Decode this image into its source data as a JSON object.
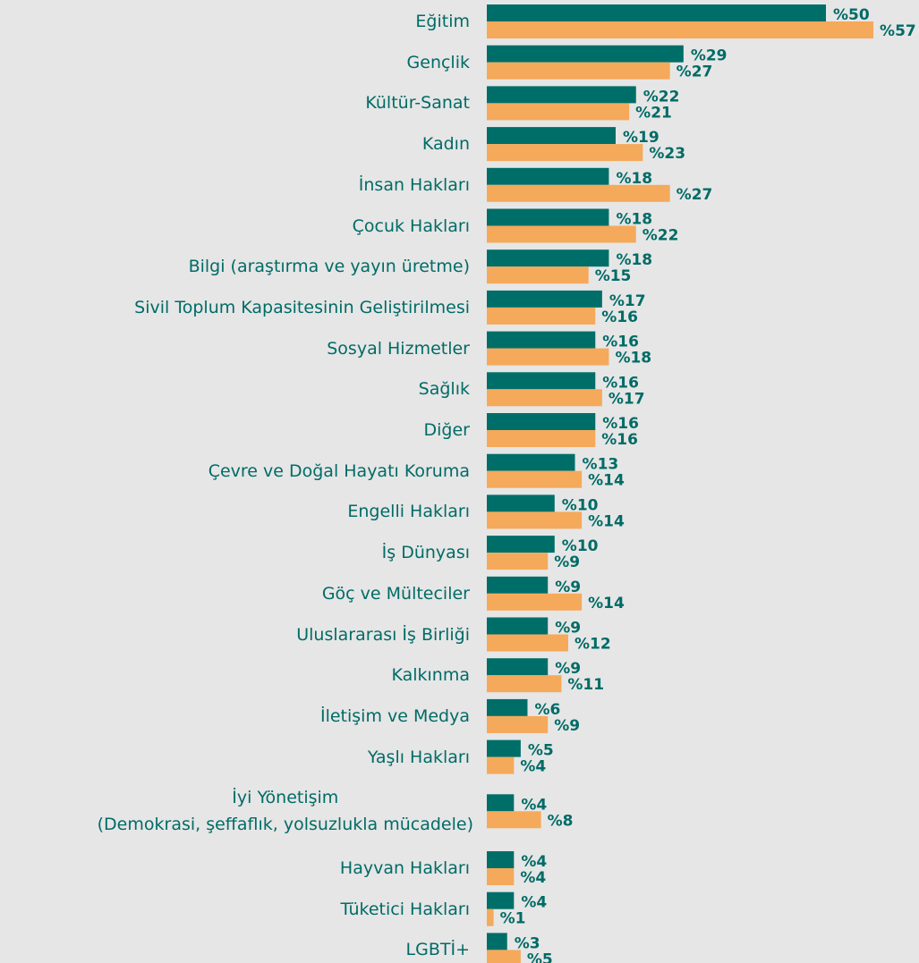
{
  "chart_data": {
    "type": "barh",
    "categories": [
      "Eğitim",
      "Gençlik",
      "Kültür-Sanat",
      "Kadın",
      "İnsan Hakları",
      "Çocuk Hakları",
      "Bilgi (araştırma ve yayın üretme)",
      "Sivil Toplum Kapasitesinin Geliştirilmesi",
      "Sosyal Hizmetler",
      "Sağlık",
      "Diğer",
      "Çevre ve Doğal Hayatı Koruma",
      "Engelli Hakları",
      "İş Dünyası",
      "Göç ve Mülteciler",
      "Uluslararası İş Birliği",
      "Kalkınma",
      "İletişim ve Medya",
      "Yaşlı Hakları",
      "İyi Yönetişim\n(Demokrasi, şeffaflık, yolsuzlukla mücadele)",
      "Hayvan Hakları",
      "Tüketici Hakları",
      "LGBTİ+"
    ],
    "series": [
      {
        "color": "#006e68",
        "values": [
          50,
          29,
          22,
          19,
          18,
          18,
          18,
          17,
          16,
          16,
          16,
          13,
          10,
          10,
          9,
          9,
          9,
          6,
          5,
          4,
          4,
          4,
          3
        ],
        "value_labels": [
          "%50",
          "%29",
          "%22",
          "%19",
          "%18",
          "%18",
          "%18",
          "%17",
          "%16",
          "%16",
          "%16",
          "%13",
          "%10",
          "%10",
          "%9",
          "%9",
          "%9",
          "%6",
          "%5",
          "%4",
          "%4",
          "%4",
          "%3"
        ]
      },
      {
        "color": "#f5a95b",
        "values": [
          57,
          27,
          21,
          23,
          27,
          22,
          15,
          16,
          18,
          17,
          16,
          14,
          14,
          9,
          14,
          12,
          11,
          9,
          4,
          8,
          4,
          1,
          5
        ],
        "value_labels": [
          "%57",
          "%27",
          "%21",
          "%23",
          "%27",
          "%22",
          "%15",
          "%16",
          "%18",
          "%17",
          "%16",
          "%14",
          "%14",
          "%9",
          "%14",
          "%12",
          "%11",
          "%9",
          "%4",
          "%8",
          "%4",
          "%1",
          "%5"
        ]
      }
    ]
  }
}
